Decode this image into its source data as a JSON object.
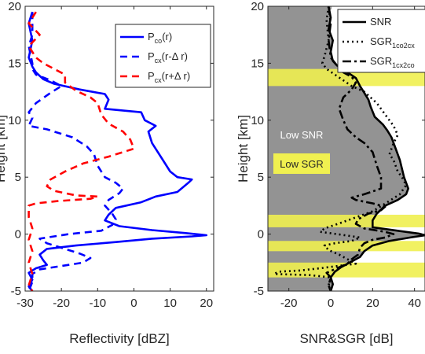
{
  "chart_data": [
    {
      "type": "line",
      "xlabel": "Reflectivity [dBZ]",
      "ylabel": "Height [km]",
      "xlim": [
        -30,
        22
      ],
      "ylim": [
        -5,
        20
      ],
      "xticks": [
        "-30",
        "-20",
        "-10",
        "0",
        "10",
        "20"
      ],
      "yticks": [
        "-5",
        "0",
        "5",
        "10",
        "15",
        "20"
      ],
      "grid": false,
      "legend_position": "top-right",
      "series": [
        {
          "name": "P_co(r)",
          "name_main": "P",
          "name_sub": "co",
          "name_rest": "(r)",
          "color": "#0000ff",
          "style": "solid",
          "points": [
            [
              -28,
              19.5
            ],
            [
              -29,
              18.5
            ],
            [
              -28,
              17
            ],
            [
              -29,
              15.5
            ],
            [
              -28,
              14.7
            ],
            [
              -27,
              14.2
            ],
            [
              -25,
              13.6
            ],
            [
              -22,
              13.2
            ],
            [
              -15,
              12.7
            ],
            [
              -8,
              12.3
            ],
            [
              -7,
              11.8
            ],
            [
              -8,
              11
            ],
            [
              2,
              10.7
            ],
            [
              3,
              10
            ],
            [
              6,
              9.5
            ],
            [
              4,
              9
            ],
            [
              5,
              8
            ],
            [
              8,
              6.5
            ],
            [
              10,
              5.5
            ],
            [
              12,
              5
            ],
            [
              16,
              4.8
            ],
            [
              15,
              4.5
            ],
            [
              12,
              3.7
            ],
            [
              6,
              3.3
            ],
            [
              2,
              2.8
            ],
            [
              -5,
              2.3
            ],
            [
              -7,
              1.7
            ],
            [
              -8,
              1.2
            ],
            [
              -4,
              0.7
            ],
            [
              5,
              0.35
            ],
            [
              14,
              0.1
            ],
            [
              20,
              -0.1
            ],
            [
              16,
              -0.2
            ],
            [
              5,
              -0.4
            ],
            [
              -5,
              -0.7
            ],
            [
              -16,
              -1
            ],
            [
              -24,
              -1.3
            ],
            [
              -26,
              -1.8
            ],
            [
              -25,
              -2.3
            ],
            [
              -24,
              -2.7
            ],
            [
              -27,
              -3
            ],
            [
              -29,
              -3.4
            ],
            [
              -28,
              -4
            ],
            [
              -29,
              -4.6
            ],
            [
              -28,
              -5
            ]
          ]
        },
        {
          "name": "P_cx(r-Δr)",
          "name_main": "P",
          "name_sub": "cx",
          "name_rest": "(r-Δ r)",
          "color": "#0000ff",
          "style": "dashed",
          "points": [
            [
              -28,
              19.5
            ],
            [
              -28,
              17.5
            ],
            [
              -29,
              16.5
            ],
            [
              -28,
              15
            ],
            [
              -28,
              14.5
            ],
            [
              -27,
              14
            ],
            [
              -23,
              13.5
            ],
            [
              -20,
              13
            ],
            [
              -23,
              12.4
            ],
            [
              -27,
              11.5
            ],
            [
              -29,
              10.7
            ],
            [
              -28,
              10.2
            ],
            [
              -29,
              9.5
            ],
            [
              -24,
              9.2
            ],
            [
              -17,
              8.5
            ],
            [
              -13,
              7.7
            ],
            [
              -11,
              7
            ],
            [
              -10,
              6
            ],
            [
              -8,
              5
            ],
            [
              -5,
              4.5
            ],
            [
              -3,
              4
            ],
            [
              -4,
              3.6
            ],
            [
              -7,
              3
            ],
            [
              -8,
              2.5
            ],
            [
              -6,
              1.8
            ],
            [
              -5,
              1.3
            ],
            [
              -6,
              0.8
            ],
            [
              -9,
              0.3
            ],
            [
              -18,
              0
            ],
            [
              -26,
              -0.4
            ],
            [
              -24,
              -0.8
            ],
            [
              -20,
              -1.2
            ],
            [
              -15,
              -1.7
            ],
            [
              -12,
              -2.1
            ],
            [
              -14,
              -2.5
            ],
            [
              -20,
              -2.8
            ],
            [
              -26,
              -3.1
            ],
            [
              -28,
              -3.5
            ],
            [
              -28,
              -4.2
            ],
            [
              -29,
              -5
            ]
          ]
        },
        {
          "name": "P_cx(r+Δr)",
          "name_main": "P",
          "name_sub": "cx",
          "name_rest": "(r+Δ r)",
          "color": "#ff0000",
          "style": "dashed",
          "points": [
            [
              -27,
              19.5
            ],
            [
              -29,
              18.5
            ],
            [
              -26,
              17.5
            ],
            [
              -29,
              16.5
            ],
            [
              -27,
              15.5
            ],
            [
              -25,
              15
            ],
            [
              -22,
              14.5
            ],
            [
              -19,
              14
            ],
            [
              -19,
              13.3
            ],
            [
              -16,
              12.6
            ],
            [
              -12,
              12
            ],
            [
              -10,
              11.5
            ],
            [
              -9,
              10.5
            ],
            [
              -7,
              9.7
            ],
            [
              -3,
              9
            ],
            [
              -1,
              8.3
            ],
            [
              0,
              7.5
            ],
            [
              -7,
              6.8
            ],
            [
              -14,
              6.2
            ],
            [
              -19,
              5.5
            ],
            [
              -23,
              4.8
            ],
            [
              -24,
              4.2
            ],
            [
              -22,
              3.8
            ],
            [
              -16,
              3.4
            ],
            [
              -10,
              3.3
            ],
            [
              -12,
              3.1
            ],
            [
              -21,
              2.9
            ],
            [
              -27,
              2.7
            ],
            [
              -29,
              2.5
            ],
            [
              -29,
              1.5
            ],
            [
              -28,
              0.5
            ],
            [
              -29,
              -0.5
            ],
            [
              -28,
              -1.5
            ],
            [
              -29,
              -2.5
            ],
            [
              -28,
              -3.5
            ],
            [
              -29,
              -4.5
            ],
            [
              -28,
              -5
            ]
          ]
        }
      ]
    },
    {
      "type": "line",
      "xlabel": "SNR&SGR [dB]",
      "ylabel": "Height [km]",
      "xlim": [
        -30,
        45
      ],
      "ylim": [
        -5,
        20
      ],
      "xticks": [
        "-20",
        "0",
        "20",
        "40"
      ],
      "yticks": [
        "-5",
        "0",
        "5",
        "10",
        "15",
        "20"
      ],
      "grid": false,
      "legend_position": "top-right",
      "regions": {
        "low_snr": {
          "label": "Low SNR",
          "color": "#939393"
        },
        "low_sgr": {
          "label": "Low SGR",
          "color": "#f0f050",
          "bands": [
            [
              13,
              14.5
            ],
            [
              0.6,
              1.7
            ],
            [
              -1.5,
              -0.6
            ],
            [
              -3.8,
              -2.5
            ]
          ]
        }
      },
      "series": [
        {
          "name": "SNR",
          "name_main": "SNR",
          "name_sub": "",
          "name_rest": "",
          "color": "#000000",
          "style": "solid",
          "points": [
            [
              -1,
              20
            ],
            [
              0,
              19
            ],
            [
              -1,
              18
            ],
            [
              1,
              17
            ],
            [
              0,
              16
            ],
            [
              1,
              15.2
            ],
            [
              3,
              14.8
            ],
            [
              8,
              14.2
            ],
            [
              12,
              13.7
            ],
            [
              14,
              13
            ],
            [
              16,
              12.4
            ],
            [
              18,
              11.8
            ],
            [
              19,
              11.2
            ],
            [
              21,
              10.3
            ],
            [
              25,
              9.6
            ],
            [
              27,
              9.1
            ],
            [
              29,
              8.5
            ],
            [
              31,
              7.5
            ],
            [
              33,
              6.5
            ],
            [
              35,
              5
            ],
            [
              37,
              4
            ],
            [
              36,
              3.5
            ],
            [
              32,
              3
            ],
            [
              26,
              2.5
            ],
            [
              22,
              1.8
            ],
            [
              20,
              1.2
            ],
            [
              20,
              0.6
            ],
            [
              32,
              0.3
            ],
            [
              42,
              0.05
            ],
            [
              45,
              -0.1
            ],
            [
              38,
              -0.3
            ],
            [
              28,
              -0.6
            ],
            [
              20,
              -1
            ],
            [
              16,
              -1.5
            ],
            [
              14,
              -2
            ],
            [
              9,
              -2.5
            ],
            [
              5,
              -2.9
            ],
            [
              2,
              -3.3
            ],
            [
              0,
              -3.8
            ],
            [
              1,
              -4.4
            ],
            [
              0,
              -5
            ]
          ]
        },
        {
          "name": "SGR_1co2cx",
          "name_main": "SGR",
          "name_sub": "1co2cx",
          "name_rest": "",
          "color": "#000000",
          "style": "dotted",
          "points": [
            [
              -1,
              20
            ],
            [
              -2,
              18.8
            ],
            [
              -1,
              17
            ],
            [
              -3,
              15.6
            ],
            [
              -4,
              15
            ],
            [
              -2,
              14.5
            ],
            [
              2,
              14
            ],
            [
              6,
              13.5
            ],
            [
              10,
              13
            ],
            [
              16,
              12.5
            ],
            [
              22,
              11.5
            ],
            [
              26,
              10.5
            ],
            [
              30,
              9.5
            ],
            [
              32,
              8.7
            ],
            [
              30,
              8
            ],
            [
              28,
              7
            ],
            [
              30,
              6.5
            ],
            [
              32,
              5.5
            ],
            [
              34,
              5
            ],
            [
              36,
              4.3
            ],
            [
              33,
              3.5
            ],
            [
              27,
              2.8
            ],
            [
              20,
              2
            ],
            [
              11,
              1.4
            ],
            [
              5,
              1
            ],
            [
              -3,
              0.5
            ],
            [
              -5,
              0.2
            ],
            [
              3,
              0
            ],
            [
              14,
              -0.3
            ],
            [
              10,
              -0.6
            ],
            [
              2,
              -0.8
            ],
            [
              -3,
              -1
            ],
            [
              -1,
              -1.4
            ],
            [
              4,
              -1.8
            ],
            [
              8,
              -2.2
            ],
            [
              12,
              -2.6
            ],
            [
              -5,
              -3
            ],
            [
              -15,
              -3.2
            ],
            [
              -25,
              -3.3
            ],
            [
              -27,
              -3.5
            ],
            [
              -10,
              -3.6
            ],
            [
              0,
              -3.8
            ],
            [
              -1,
              -4.5
            ],
            [
              0,
              -5
            ]
          ]
        },
        {
          "name": "SGR_1cx2co",
          "name_main": "SGR",
          "name_sub": "1cx2co",
          "name_rest": "",
          "color": "#000000",
          "style": "dashdot",
          "points": [
            [
              -1,
              20
            ],
            [
              0,
              18.5
            ],
            [
              -1,
              17
            ],
            [
              0,
              15.5
            ],
            [
              3,
              14.8
            ],
            [
              6,
              14.2
            ],
            [
              10,
              13.8
            ],
            [
              12,
              13.3
            ],
            [
              10,
              12.7
            ],
            [
              6,
              12
            ],
            [
              4,
              11
            ],
            [
              6,
              10
            ],
            [
              8,
              9.2
            ],
            [
              12,
              8.5
            ],
            [
              16,
              8
            ],
            [
              20,
              7.2
            ],
            [
              22,
              6
            ],
            [
              24,
              5
            ],
            [
              24,
              4
            ],
            [
              16,
              3.5
            ],
            [
              10,
              3.2
            ],
            [
              12,
              3
            ],
            [
              20,
              2.7
            ],
            [
              26,
              2.4
            ],
            [
              24,
              2.1
            ],
            [
              18,
              1.8
            ],
            [
              13,
              1.3
            ],
            [
              12,
              0.9
            ],
            [
              16,
              0.5
            ],
            [
              26,
              0.2
            ],
            [
              30,
              0
            ],
            [
              26,
              -0.3
            ],
            [
              20,
              -0.5
            ],
            [
              16,
              -0.8
            ],
            [
              14,
              -1.2
            ],
            [
              13,
              -1.8
            ],
            [
              10,
              -2.2
            ],
            [
              8,
              -2.6
            ],
            [
              3,
              -3
            ],
            [
              -2,
              -3.4
            ],
            [
              0,
              -3.8
            ],
            [
              -1,
              -4.5
            ],
            [
              0,
              -5
            ]
          ]
        }
      ]
    }
  ]
}
